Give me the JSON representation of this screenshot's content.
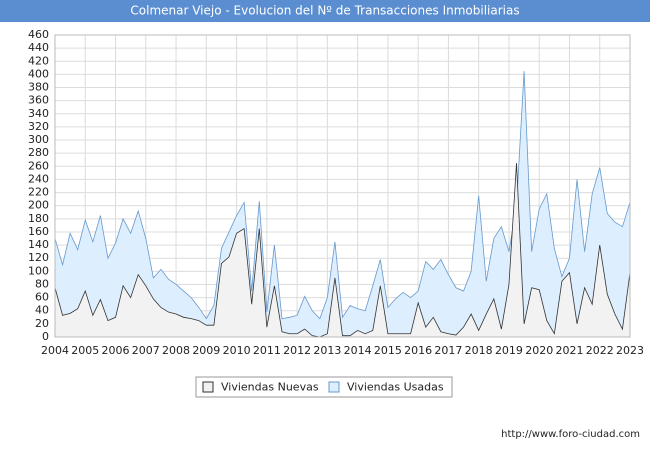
{
  "chart_data": {
    "type": "area",
    "title": "Colmenar Viejo - Evolucion del Nº de Transacciones Inmobiliarias",
    "source": "http://www.foro-ciudad.com",
    "x": [
      2004,
      2004.25,
      2004.5,
      2004.75,
      2005,
      2005.25,
      2005.5,
      2005.75,
      2006,
      2006.25,
      2006.5,
      2006.75,
      2007,
      2007.25,
      2007.5,
      2007.75,
      2008,
      2008.25,
      2008.5,
      2008.75,
      2009,
      2009.25,
      2009.5,
      2009.75,
      2010,
      2010.25,
      2010.5,
      2010.75,
      2011,
      2011.25,
      2011.5,
      2011.75,
      2012,
      2012.25,
      2012.5,
      2012.75,
      2013,
      2013.25,
      2013.5,
      2013.75,
      2014,
      2014.25,
      2014.5,
      2014.75,
      2015,
      2015.25,
      2015.5,
      2015.75,
      2016,
      2016.25,
      2016.5,
      2016.75,
      2017,
      2017.25,
      2017.5,
      2017.75,
      2018,
      2018.25,
      2018.5,
      2018.75,
      2019,
      2019.25,
      2019.5,
      2019.75,
      2020,
      2020.25,
      2020.5,
      2020.75,
      2021,
      2021.25,
      2021.5,
      2021.75,
      2022,
      2022.25,
      2022.5,
      2022.75,
      2023
    ],
    "xlim": [
      2004,
      2023
    ],
    "xticks": [
      2004,
      2005,
      2006,
      2007,
      2008,
      2009,
      2010,
      2011,
      2012,
      2013,
      2014,
      2015,
      2016,
      2017,
      2018,
      2019,
      2020,
      2021,
      2022,
      2023
    ],
    "ylim": [
      0,
      460
    ],
    "yticks": [
      0,
      20,
      40,
      60,
      80,
      100,
      120,
      140,
      160,
      180,
      200,
      220,
      240,
      260,
      280,
      300,
      320,
      340,
      360,
      380,
      400,
      420,
      440,
      460
    ],
    "grid": true,
    "legend": "bottom",
    "series": [
      {
        "name": "Viviendas Usadas",
        "color": "#6699cc",
        "fill": "#ddeeff",
        "values": [
          150,
          110,
          158,
          133,
          178,
          145,
          185,
          120,
          143,
          180,
          158,
          192,
          150,
          90,
          103,
          88,
          80,
          70,
          60,
          45,
          28,
          48,
          135,
          160,
          185,
          205,
          70,
          207,
          38,
          140,
          28,
          30,
          33,
          62,
          40,
          28,
          60,
          145,
          30,
          48,
          43,
          40,
          78,
          118,
          45,
          58,
          68,
          60,
          70,
          115,
          103,
          118,
          95,
          75,
          70,
          100,
          215,
          85,
          150,
          168,
          130,
          200,
          405,
          130,
          195,
          218,
          135,
          92,
          120,
          240,
          130,
          218,
          258,
          188,
          175,
          168,
          205
        ]
      },
      {
        "name": "Viviendas Nuevas",
        "color": "#333333",
        "fill": "#f2f2f2",
        "values": [
          75,
          33,
          36,
          43,
          70,
          33,
          57,
          25,
          30,
          78,
          60,
          95,
          78,
          58,
          45,
          38,
          35,
          30,
          28,
          25,
          18,
          18,
          112,
          122,
          158,
          165,
          50,
          165,
          15,
          78,
          8,
          5,
          5,
          12,
          2,
          0,
          5,
          90,
          2,
          2,
          10,
          5,
          10,
          78,
          5,
          5,
          5,
          5,
          52,
          15,
          30,
          8,
          5,
          3,
          15,
          35,
          10,
          35,
          58,
          12,
          80,
          265,
          20,
          75,
          72,
          25,
          5,
          85,
          98,
          20,
          75,
          50,
          140,
          65,
          35,
          12,
          98
        ]
      }
    ]
  }
}
